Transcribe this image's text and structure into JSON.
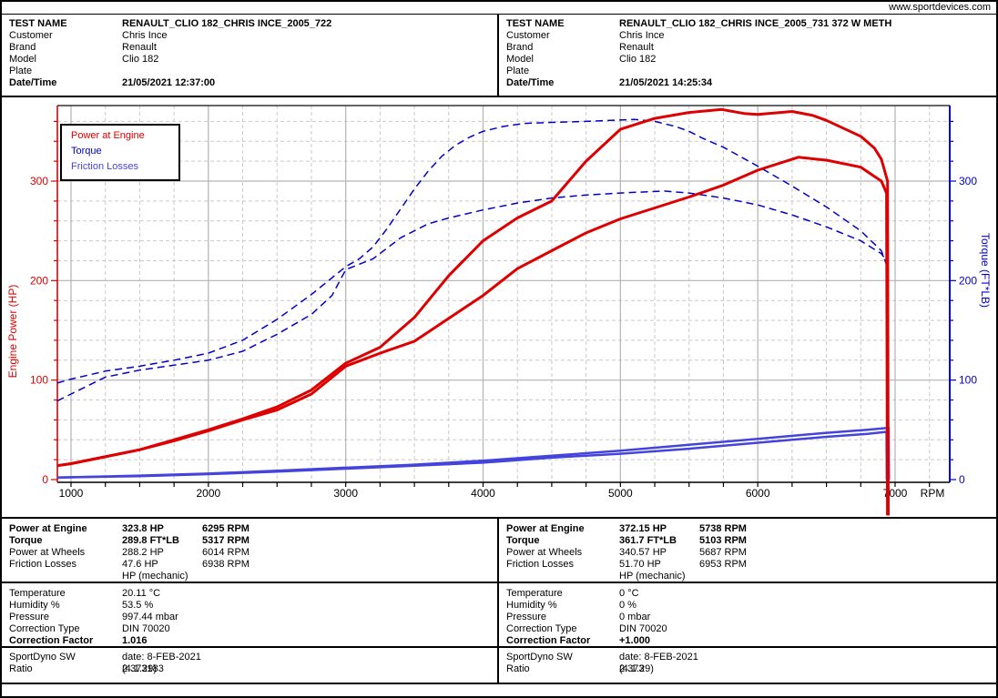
{
  "topbar": {
    "url": "www.sportdevices.com"
  },
  "header_labels": {
    "test_name": "TEST NAME",
    "customer": "Customer",
    "brand": "Brand",
    "model": "Model",
    "plate": "Plate",
    "datetime": "Date/Time"
  },
  "panels": [
    {
      "header": [
        {
          "label": "TEST NAME",
          "value": "RENAULT_CLIO 182_CHRIS INCE_2005_722",
          "bold": true
        },
        {
          "label": "Customer",
          "value": "Chris Ince",
          "bold": false
        },
        {
          "label": "Brand",
          "value": "Renault",
          "bold": false
        },
        {
          "label": "Model",
          "value": "Clio 182",
          "bold": false
        },
        {
          "label": "Plate",
          "value": "",
          "bold": false
        },
        {
          "label": "Date/Time",
          "value": "21/05/2021 12:37:00",
          "bold": true
        }
      ],
      "results": [
        {
          "label": "Power at Engine",
          "value": "323.8 HP",
          "rpm": "6295 RPM",
          "bold": true
        },
        {
          "label": "Torque",
          "value": "289.8 FT*LB",
          "rpm": "5317 RPM",
          "bold": true
        },
        {
          "label": "Power at Wheels",
          "value": "288.2 HP",
          "rpm": "6014 RPM",
          "bold": false
        },
        {
          "label": "Friction Losses",
          "value": "47.6 HP",
          "rpm": "6938 RPM",
          "bold": false
        },
        {
          "label": "",
          "value": "HP (mechanic)",
          "rpm": "",
          "bold": false
        }
      ],
      "environment": [
        {
          "label": "Temperature",
          "value": "20.11 °C",
          "bold": false
        },
        {
          "label": "Humidity %",
          "value": "53.5 %",
          "bold": false
        },
        {
          "label": "Pressure",
          "value": "997.44 mbar",
          "bold": false
        },
        {
          "label": "Correction Type",
          "value": "DIN 70020",
          "bold": false
        },
        {
          "label": "Correction Factor",
          "value": "1.016",
          "bold": true
        }
      ],
      "software": [
        {
          "label": "SportDyno SW",
          "value": "date: 8-FEB-2021 (4.1.29)",
          "bold": false
        },
        {
          "label": "Ratio",
          "value": "2.373183",
          "bold": false
        }
      ]
    },
    {
      "header": [
        {
          "label": "TEST NAME",
          "value": "RENAULT_CLIO 182_CHRIS INCE_2005_731 372 W METH",
          "bold": true
        },
        {
          "label": "Customer",
          "value": "Chris Ince",
          "bold": false
        },
        {
          "label": "Brand",
          "value": "Renault",
          "bold": false
        },
        {
          "label": "Model",
          "value": "Clio 182",
          "bold": false
        },
        {
          "label": "Plate",
          "value": "",
          "bold": false
        },
        {
          "label": "Date/Time",
          "value": "21/05/2021 14:25:34",
          "bold": true
        }
      ],
      "results": [
        {
          "label": "Power at Engine",
          "value": "372.15 HP",
          "rpm": "5738 RPM",
          "bold": true
        },
        {
          "label": "Torque",
          "value": "361.7 FT*LB",
          "rpm": "5103 RPM",
          "bold": true
        },
        {
          "label": "Power at Wheels",
          "value": "340.57 HP",
          "rpm": "5687 RPM",
          "bold": false
        },
        {
          "label": "Friction Losses",
          "value": "51.70 HP",
          "rpm": "6953 RPM",
          "bold": false
        },
        {
          "label": "",
          "value": "HP (mechanic)",
          "rpm": "",
          "bold": false
        }
      ],
      "environment": [
        {
          "label": "Temperature",
          "value": "0 °C",
          "bold": false
        },
        {
          "label": "Humidity %",
          "value": "0 %",
          "bold": false
        },
        {
          "label": "Pressure",
          "value": "0 mbar",
          "bold": false
        },
        {
          "label": "Correction Type",
          "value": "DIN 70020",
          "bold": false
        },
        {
          "label": "Correction Factor",
          "value": "+1.000",
          "bold": true
        }
      ],
      "software": [
        {
          "label": "SportDyno SW",
          "value": "date: 8-FEB-2021 (4.1.29)",
          "bold": false
        },
        {
          "label": "Ratio",
          "value": "2.373",
          "bold": false
        }
      ]
    }
  ],
  "chart_data": {
    "type": "line",
    "legend": [
      "Power at Engine",
      "Torque",
      "Friction Losses"
    ],
    "legend_colors": [
      "#DE0000",
      "#0000CC",
      "#4444DD"
    ],
    "x_axis": {
      "label": "RPM",
      "ticks": [
        1000,
        2000,
        3000,
        4000,
        5000,
        6000,
        7000
      ],
      "minor_step": 250,
      "range": [
        900,
        7400
      ]
    },
    "y_left": {
      "title": "Engine Power (HP)",
      "unit": "HP",
      "ticks": [
        0,
        100,
        200,
        300
      ],
      "minor_step": 20,
      "range": [
        0,
        376
      ],
      "color": "#DE0000"
    },
    "y_right": {
      "title": "Torque (FT*LB)",
      "unit": "FT*LB",
      "ticks": [
        0,
        100,
        200,
        300
      ],
      "minor_step": 20,
      "range": [
        0,
        376
      ],
      "color": "#0000CC"
    },
    "grid": {
      "major_color": "#b3b3b3",
      "minor_color": "#c9c9c9",
      "minor_dashed": true
    },
    "series": [
      {
        "name": "torque-run-731-meth",
        "legend": "Torque",
        "unit": "FT*LB",
        "color": "#0000CC",
        "style": "dashed",
        "width": 1.5,
        "peak": {
          "value": 361.7,
          "rpm": 5103
        },
        "points": [
          [
            900,
            97
          ],
          [
            1000,
            101
          ],
          [
            1250,
            109
          ],
          [
            1500,
            114
          ],
          [
            1750,
            120
          ],
          [
            2000,
            127
          ],
          [
            2250,
            140
          ],
          [
            2500,
            161
          ],
          [
            2750,
            186
          ],
          [
            3000,
            214
          ],
          [
            3100,
            222
          ],
          [
            3200,
            234
          ],
          [
            3300,
            252
          ],
          [
            3400,
            272
          ],
          [
            3500,
            292
          ],
          [
            3600,
            310
          ],
          [
            3700,
            325
          ],
          [
            3800,
            336
          ],
          [
            3900,
            344
          ],
          [
            4000,
            350
          ],
          [
            4150,
            355
          ],
          [
            4300,
            358
          ],
          [
            4500,
            359
          ],
          [
            4750,
            360
          ],
          [
            5103,
            362
          ],
          [
            5250,
            360
          ],
          [
            5400,
            355
          ],
          [
            5500,
            350
          ],
          [
            5600,
            343
          ],
          [
            5750,
            334
          ],
          [
            6000,
            315
          ],
          [
            6250,
            295
          ],
          [
            6500,
            274
          ],
          [
            6750,
            250
          ],
          [
            6900,
            230
          ],
          [
            6940,
            215
          ],
          [
            6945,
            0
          ]
        ]
      },
      {
        "name": "torque-run-722",
        "legend": "Torque",
        "unit": "FT*LB",
        "color": "#0000CC",
        "style": "dashed",
        "width": 1.5,
        "peak": {
          "value": 289.8,
          "rpm": 5317
        },
        "points": [
          [
            900,
            79
          ],
          [
            1000,
            86
          ],
          [
            1250,
            103
          ],
          [
            1500,
            110
          ],
          [
            1750,
            115
          ],
          [
            2000,
            120
          ],
          [
            2250,
            129
          ],
          [
            2500,
            146
          ],
          [
            2750,
            166
          ],
          [
            2900,
            185
          ],
          [
            3000,
            211
          ],
          [
            3200,
            222
          ],
          [
            3400,
            243
          ],
          [
            3600,
            257
          ],
          [
            3750,
            263
          ],
          [
            4000,
            271
          ],
          [
            4250,
            278
          ],
          [
            4500,
            283
          ],
          [
            4750,
            286
          ],
          [
            5000,
            288
          ],
          [
            5317,
            290
          ],
          [
            5500,
            288
          ],
          [
            5750,
            283
          ],
          [
            6000,
            276
          ],
          [
            6250,
            266
          ],
          [
            6500,
            254
          ],
          [
            6750,
            240
          ],
          [
            6900,
            227
          ],
          [
            6940,
            220
          ],
          [
            6945,
            0
          ]
        ]
      },
      {
        "name": "friction-losses-run-731-meth",
        "legend": "Friction Losses",
        "unit": "HP",
        "color": "#4444DD",
        "style": "solid",
        "width": 2.5,
        "peak": {
          "value": 51.7,
          "rpm": 6953
        },
        "points": [
          [
            900,
            2
          ],
          [
            1500,
            4
          ],
          [
            2000,
            6
          ],
          [
            2500,
            9
          ],
          [
            3000,
            12
          ],
          [
            3500,
            15
          ],
          [
            4000,
            19
          ],
          [
            4500,
            24
          ],
          [
            5000,
            29
          ],
          [
            5500,
            35
          ],
          [
            6000,
            41
          ],
          [
            6500,
            47
          ],
          [
            6800,
            50
          ],
          [
            6953,
            52
          ],
          [
            6955,
            0
          ]
        ]
      },
      {
        "name": "friction-losses-run-722",
        "legend": "Friction Losses",
        "unit": "HP",
        "color": "#4444DD",
        "style": "solid",
        "width": 2.5,
        "peak": {
          "value": 47.6,
          "rpm": 6938
        },
        "points": [
          [
            900,
            2
          ],
          [
            1500,
            3.5
          ],
          [
            2000,
            5.5
          ],
          [
            2500,
            8
          ],
          [
            3000,
            11
          ],
          [
            3500,
            14
          ],
          [
            4000,
            17
          ],
          [
            4500,
            22
          ],
          [
            5000,
            26
          ],
          [
            5500,
            31
          ],
          [
            6000,
            37
          ],
          [
            6500,
            43
          ],
          [
            6800,
            46
          ],
          [
            6938,
            48
          ],
          [
            6940,
            0
          ]
        ]
      },
      {
        "name": "power-at-engine-run-722",
        "legend": "Power at Engine",
        "unit": "HP",
        "color": "#DE0000",
        "style": "solid",
        "width": 3,
        "peak": {
          "value": 323.8,
          "rpm": 6295
        },
        "points": [
          [
            900,
            14
          ],
          [
            1000,
            16
          ],
          [
            1250,
            23
          ],
          [
            1500,
            30
          ],
          [
            1750,
            39
          ],
          [
            2000,
            49
          ],
          [
            2250,
            60
          ],
          [
            2500,
            70
          ],
          [
            2750,
            86
          ],
          [
            3000,
            114
          ],
          [
            3250,
            127
          ],
          [
            3500,
            139
          ],
          [
            3750,
            162
          ],
          [
            4000,
            185
          ],
          [
            4250,
            212
          ],
          [
            4500,
            230
          ],
          [
            4750,
            248
          ],
          [
            5000,
            262
          ],
          [
            5250,
            273
          ],
          [
            5500,
            284
          ],
          [
            5750,
            296
          ],
          [
            6000,
            311
          ],
          [
            6295,
            324
          ],
          [
            6500,
            321
          ],
          [
            6750,
            314
          ],
          [
            6900,
            300
          ],
          [
            6938,
            288
          ],
          [
            6944,
            -36
          ]
        ]
      },
      {
        "name": "power-at-engine-run-731-meth",
        "legend": "Power at Engine",
        "unit": "HP",
        "color": "#DE0000",
        "style": "solid",
        "width": 3,
        "peak": {
          "value": 372.15,
          "rpm": 5738
        },
        "points": [
          [
            900,
            14
          ],
          [
            1000,
            16
          ],
          [
            1250,
            23
          ],
          [
            1500,
            30
          ],
          [
            1750,
            40
          ],
          [
            2000,
            50
          ],
          [
            2250,
            61
          ],
          [
            2500,
            73
          ],
          [
            2750,
            90
          ],
          [
            3000,
            117
          ],
          [
            3250,
            133
          ],
          [
            3500,
            163
          ],
          [
            3750,
            205
          ],
          [
            4000,
            240
          ],
          [
            4250,
            263
          ],
          [
            4500,
            280
          ],
          [
            4750,
            320
          ],
          [
            5000,
            352
          ],
          [
            5250,
            363
          ],
          [
            5500,
            369
          ],
          [
            5738,
            372
          ],
          [
            5900,
            368
          ],
          [
            6000,
            367
          ],
          [
            6250,
            370
          ],
          [
            6400,
            366
          ],
          [
            6500,
            361
          ],
          [
            6750,
            345
          ],
          [
            6850,
            333
          ],
          [
            6900,
            322
          ],
          [
            6945,
            300
          ],
          [
            6950,
            -36
          ]
        ]
      }
    ]
  }
}
